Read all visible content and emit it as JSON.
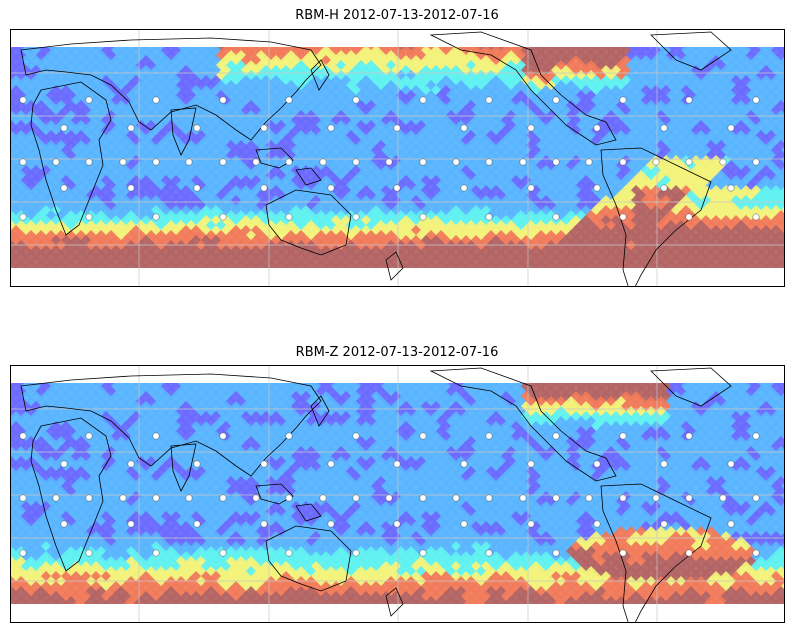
{
  "panels": [
    {
      "title": "RBM-H 2012-07-13-2012-07-16",
      "variant": "H"
    },
    {
      "title": "RBM-Z 2012-07-13-2012-07-16",
      "variant": "Z"
    }
  ],
  "colors": {
    "low": "#6a6aff",
    "mid_low": "#5ab4ff",
    "mid": "#60f0f0",
    "mid_high": "#f2f27a",
    "high": "#f07a5a",
    "max": "#b36464",
    "coast": "#000000",
    "grid": "#c8c8c8",
    "station": "#ffffff"
  },
  "icons": {
    "station": "station-marker-icon"
  }
}
